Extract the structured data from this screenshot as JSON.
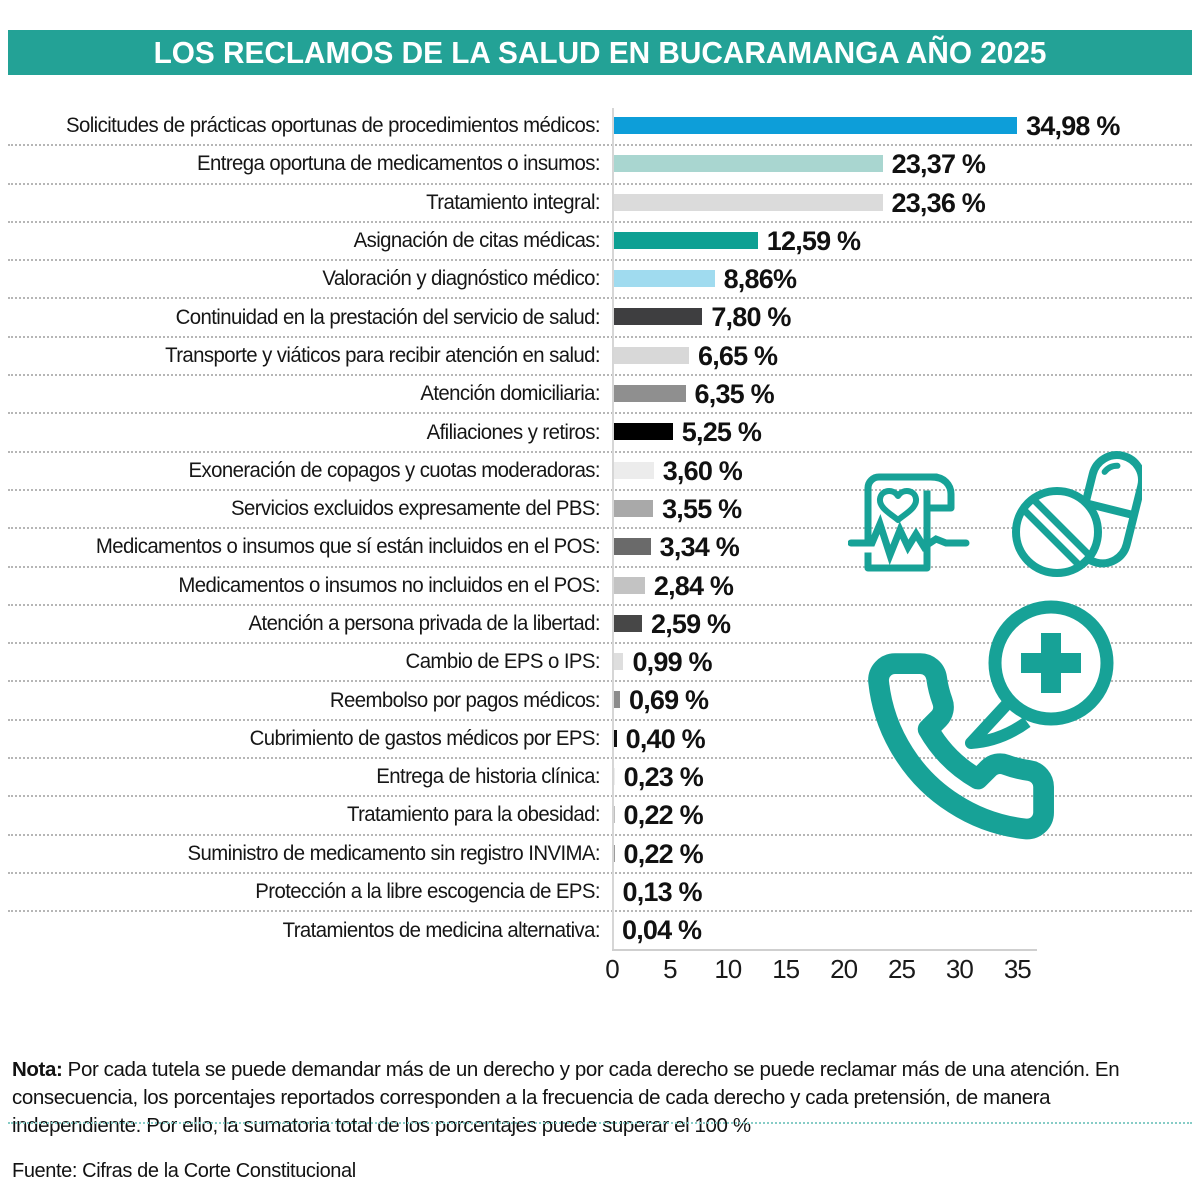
{
  "title": "LOS RECLAMOS DE LA SALUD EN BUCARAMANGA AÑO 2025",
  "colors": {
    "banner": "#23A296",
    "icon_teal": "#17A297",
    "axis": "#cfcfcf",
    "row_separator": "#b6b6b6",
    "note_rule": "#86ccc6"
  },
  "chart_data": {
    "type": "bar",
    "orientation": "horizontal",
    "title": "LOS RECLAMOS DE LA SALUD EN BUCARAMANGA AÑO 2025",
    "xlabel": "",
    "ylabel": "",
    "xlim": [
      0,
      35
    ],
    "x_ticks": [
      0,
      5,
      10,
      15,
      20,
      25,
      30,
      35
    ],
    "grid": "dotted horizontal row separators",
    "legend": "none",
    "categories": [
      "Solicitudes de prácticas oportunas de procedimientos médicos:",
      "Entrega oportuna de medicamentos o insumos:",
      "Tratamiento integral:",
      "Asignación de citas médicas:",
      "Valoración y diagnóstico médico:",
      "Continuidad en la prestación del servicio de salud:",
      "Transporte y viáticos para recibir atención en salud:",
      "Atención domiciliaria:",
      "Afiliaciones y retiros:",
      "Exoneración de copagos y cuotas moderadoras:",
      "Servicios excluidos expresamente del PBS:",
      "Medicamentos o insumos que sí están incluidos en el POS:",
      "Medicamentos o insumos no incluidos en el POS:",
      "Atención a persona privada de la libertad:",
      "Cambio de EPS o IPS:",
      "Reembolso por pagos médicos:",
      "Cubrimiento de gastos médicos por EPS:",
      "Entrega de historia clínica:",
      "Tratamiento para la obesidad:",
      "Suministro de medicamento sin registro INVIMA:",
      "Protección a la libre escogencia de EPS:",
      "Tratamientos de medicina alternativa:"
    ],
    "values": [
      34.98,
      23.37,
      23.36,
      12.59,
      8.86,
      7.8,
      6.65,
      6.35,
      5.25,
      3.6,
      3.55,
      3.34,
      2.84,
      2.59,
      0.99,
      0.69,
      0.4,
      0.23,
      0.22,
      0.22,
      0.13,
      0.04
    ],
    "value_labels": [
      "34,98 %",
      "23,37 %",
      "23,36 %",
      "12,59 %",
      "8,86%",
      "7,80 %",
      "6,65 %",
      "6,35 %",
      "5,25 %",
      "3,60 %",
      "3,55 %",
      "3,34 %",
      "2,84 %",
      "2,59 %",
      "0,99 %",
      "0,69 %",
      "0,40 %",
      "0,23 %",
      "0,22 %",
      "0,22 %",
      "0,13 %",
      "0,04 %"
    ],
    "bar_colors": [
      "#0D9ED9",
      "#A9D6D0",
      "#DBDBDB",
      "#0EA093",
      "#A0DBEF",
      "#3E3E40",
      "#D8D8D8",
      "#8F8F8F",
      "#000000",
      "#ECECEC",
      "#A9A9A9",
      "#6A6A6A",
      "#C3C3C3",
      "#474747",
      "#DEDEDE",
      "#8C8C8C",
      "#111111",
      "#EDEDED",
      "#BFBFBF",
      "#9C9C9C",
      "#D6D6D6",
      "#E0E0E0"
    ]
  },
  "icons": [
    {
      "name": "medical-report-ecg-icon"
    },
    {
      "name": "pills-icon"
    },
    {
      "name": "phone-assistance-icon"
    }
  ],
  "note": {
    "label": "Nota:",
    "text": " Por cada tutela se puede demandar más de un derecho y por cada derecho se puede reclamar más de una atención. En consecuencia, los porcentajes reportados corresponden a la frecuencia de cada derecho y cada pretensión, de manera independiente. Por ello, la sumatoria total de los porcentajes puede superar el 100 %"
  },
  "source": "Fuente: Cifras de la Corte Constitucional"
}
